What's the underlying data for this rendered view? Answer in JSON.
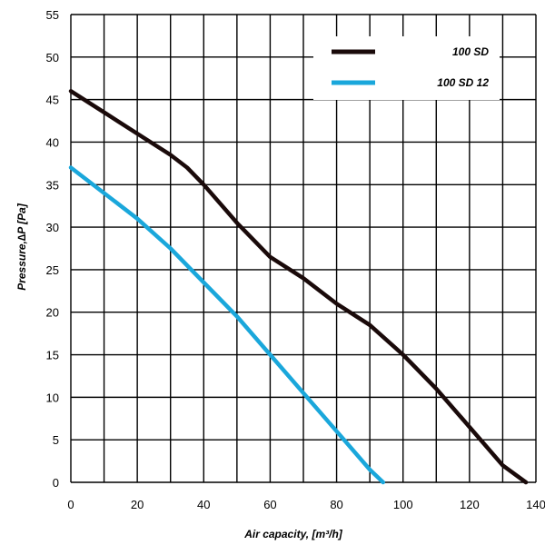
{
  "chart_data": {
    "type": "line",
    "title": "",
    "xlabel": "Air capacity, [m³/h]",
    "ylabel": "Pressure,∆P [Pa]",
    "xlim": [
      0,
      140
    ],
    "ylim": [
      0,
      55
    ],
    "x_ticks": [
      0,
      20,
      40,
      60,
      80,
      100,
      120,
      140
    ],
    "y_ticks": [
      0,
      5,
      10,
      15,
      20,
      25,
      30,
      35,
      40,
      45,
      50,
      55
    ],
    "x_minor_step": 10,
    "y_minor_step": 5,
    "grid": true,
    "legend_position": "top-right",
    "series": [
      {
        "name": "100 SD",
        "color": "#1a0a0a",
        "x": [
          0,
          10,
          20,
          30,
          35,
          40,
          50,
          60,
          70,
          80,
          90,
          100,
          110,
          120,
          130,
          137
        ],
        "y": [
          46,
          43.5,
          41,
          38.5,
          37,
          35,
          30.5,
          26.5,
          24,
          21,
          18.5,
          15,
          11,
          6.5,
          2,
          0
        ]
      },
      {
        "name": "100 SD 12",
        "color": "#1aa7db",
        "x": [
          0,
          10,
          20,
          30,
          40,
          50,
          60,
          70,
          80,
          90,
          94
        ],
        "y": [
          37,
          34,
          31,
          27.5,
          23.5,
          19.5,
          15,
          10.5,
          6,
          1.5,
          0
        ]
      }
    ]
  }
}
